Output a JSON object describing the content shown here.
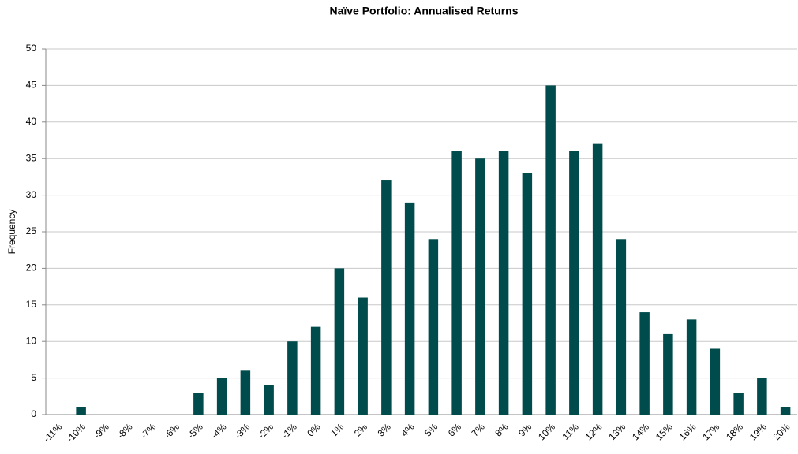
{
  "chart_data": {
    "type": "bar",
    "title": "Naïve Portfolio: Annualised Returns",
    "y_label": "Frequency",
    "categories": [
      "-11%",
      "-10%",
      "-9%",
      "-8%",
      "-7%",
      "-6%",
      "-5%",
      "-4%",
      "-3%",
      "-2%",
      "-1%",
      "0%",
      "1%",
      "2%",
      "3%",
      "4%",
      "5%",
      "6%",
      "7%",
      "8%",
      "9%",
      "10%",
      "11%",
      "12%",
      "13%",
      "14%",
      "15%",
      "16%",
      "17%",
      "18%",
      "19%",
      "20%"
    ],
    "values": [
      0,
      1,
      0,
      0,
      0,
      0,
      3,
      5,
      6,
      4,
      10,
      12,
      20,
      16,
      32,
      29,
      24,
      36,
      35,
      36,
      33,
      45,
      36,
      37,
      24,
      14,
      11,
      13,
      9,
      3,
      5,
      1
    ],
    "color": "#004c4c",
    "ylim": [
      0,
      50
    ],
    "yticks": [
      0,
      5,
      10,
      15,
      20,
      25,
      30,
      35,
      40,
      45,
      50
    ],
    "grid": true
  }
}
